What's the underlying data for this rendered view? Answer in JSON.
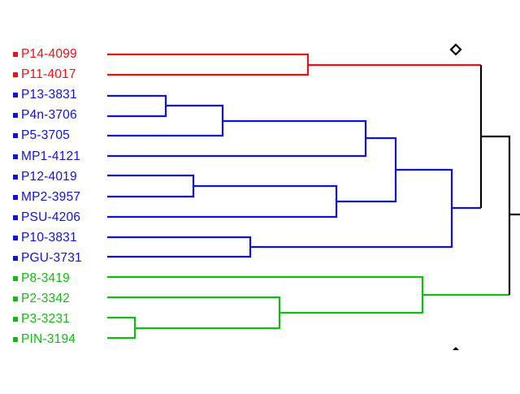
{
  "leaves": [
    {
      "label": "P14-4099",
      "color": "#ee1111"
    },
    {
      "label": "P11-4017",
      "color": "#ee1111"
    },
    {
      "label": "P13-3831",
      "color": "#1111dd"
    },
    {
      "label": "P4n-3706",
      "color": "#1111dd"
    },
    {
      "label": "P5-3705",
      "color": "#1111dd"
    },
    {
      "label": "MP1-4121",
      "color": "#1111dd"
    },
    {
      "label": "P12-4019",
      "color": "#1111dd"
    },
    {
      "label": "MP2-3957",
      "color": "#1111dd"
    },
    {
      "label": "PSU-4206",
      "color": "#1111dd"
    },
    {
      "label": "P10-3831",
      "color": "#1111dd"
    },
    {
      "label": "PGU-3731",
      "color": "#1111dd"
    },
    {
      "label": "P8-3419",
      "color": "#11bb11"
    },
    {
      "label": "P2-3342",
      "color": "#11bb11"
    },
    {
      "label": "P3-3231",
      "color": "#11bb11"
    },
    {
      "label": "PIN-3194",
      "color": "#11bb11"
    }
  ],
  "colors": {
    "red_cluster": "#ee1111",
    "blue_cluster": "#1111dd",
    "green_cluster": "#11bb11",
    "root": "#000000",
    "background": "#ffffff"
  },
  "icons": {
    "top_marker": "diamond-marker-icon",
    "bottom_marker": "triangle-marker-icon"
  }
}
